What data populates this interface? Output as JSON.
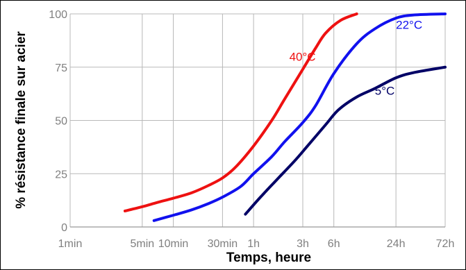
{
  "chart_data": {
    "type": "line",
    "title": "",
    "xlabel": "Temps, heure",
    "ylabel": "% résistance finale sur acier",
    "x_scale": "log",
    "x_unit": "minutes",
    "xlim": [
      1,
      4320
    ],
    "ylim": [
      0,
      100
    ],
    "x_ticks": [
      {
        "label": "1min",
        "value": 1
      },
      {
        "label": "5min",
        "value": 5
      },
      {
        "label": "10min",
        "value": 10
      },
      {
        "label": "30min",
        "value": 30
      },
      {
        "label": "1h",
        "value": 60
      },
      {
        "label": "3h",
        "value": 180
      },
      {
        "label": "6h",
        "value": 360
      },
      {
        "label": "24h",
        "value": 1440
      },
      {
        "label": "72h",
        "value": 4320
      }
    ],
    "y_ticks": [
      {
        "label": "0",
        "value": 0
      },
      {
        "label": "25",
        "value": 25
      },
      {
        "label": "50",
        "value": 50
      },
      {
        "label": "75",
        "value": 75
      },
      {
        "label": "100",
        "value": 100
      }
    ],
    "grid": true,
    "legend": "inline labels next to curves",
    "series": [
      {
        "name": "40°C",
        "color": "#ee1111",
        "x": [
          3.4,
          5,
          7,
          10,
          15,
          22,
          30,
          40,
          60,
          90,
          120,
          180,
          240,
          300,
          420,
          600
        ],
        "y": [
          7.5,
          9.5,
          11.5,
          13.5,
          16,
          19.5,
          23,
          28,
          38,
          50,
          60,
          74,
          84,
          91,
          97,
          100
        ]
      },
      {
        "name": "22°C",
        "color": "#1111ee",
        "x": [
          6.5,
          10,
          15,
          22,
          30,
          45,
          60,
          90,
          120,
          180,
          240,
          360,
          600,
          900,
          1440,
          2160,
          4320
        ],
        "y": [
          3,
          5.5,
          8,
          11,
          14,
          19,
          25,
          33,
          40,
          49,
          57,
          72,
          86,
          93,
          98,
          99.5,
          100
        ]
      },
      {
        "name": "5°C",
        "color": "#000066",
        "x": [
          50,
          70,
          100,
          150,
          200,
          300,
          400,
          600,
          900,
          1440,
          2160,
          4320
        ],
        "y": [
          6,
          14,
          22,
          31,
          38,
          48,
          55,
          61,
          65,
          70,
          72.5,
          75
        ]
      }
    ]
  }
}
